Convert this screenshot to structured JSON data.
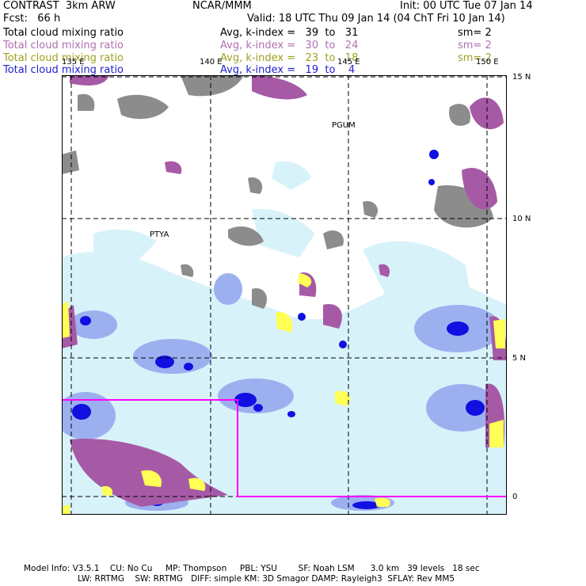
{
  "header": {
    "model": "CONTRAST  3km ARW",
    "center": "NCAR/MMM",
    "init": "Init: 00 UTC Tue 07 Jan 14",
    "fcst": "Fcst:   66 h",
    "valid": "Valid: 18 UTC Thu 09 Jan 14 (04 ChT Fri 10 Jan 14)"
  },
  "fields": [
    {
      "name": "Total cloud mixing ratio",
      "range": "Avg, k-index =   39  to   31",
      "sm": "sm= 2",
      "color": "#000000"
    },
    {
      "name": "Total cloud mixing ratio",
      "range": "Avg, k-index =   30  to   24",
      "sm": "sm= 2",
      "color": "#b070b0"
    },
    {
      "name": "Total cloud mixing ratio",
      "range": "Avg, k-index =   23  to   18",
      "sm": "sm= 2",
      "color": "#a0a020"
    },
    {
      "name": "Total cloud mixing ratio",
      "range": "Avg, k-index =   19  to    4",
      "sm": "",
      "color": "#2020d0"
    }
  ],
  "map": {
    "lon_labels": [
      "135 E",
      "140 E",
      "145 E",
      "150 E"
    ],
    "lat_labels": [
      "15 N",
      "10 N",
      "5 N",
      "0"
    ],
    "stations": [
      "PGUM",
      "PTYA"
    ],
    "colors": {
      "layer_black": "#8c8c8c",
      "layer_magenta": "#a65aa6",
      "layer_yellow": "#ffff55",
      "layer_blue_light": "#d8f2fa",
      "layer_blue_mid": "#9cb0f0",
      "layer_blue_dark": "#1010e0",
      "nest_box": "#ff00ff"
    }
  },
  "footer": {
    "line1": "Model Info: V3.5.1    CU: No Cu     MP: Thompson     PBL: YSU        SF: Noah LSM      3.0 km   39 levels   18 sec",
    "line2": "LW: RRTMG    SW: RRTMG   DIFF: simple KM: 3D Smagor DAMP: Rayleigh3  SFLAY: Rev MM5"
  }
}
